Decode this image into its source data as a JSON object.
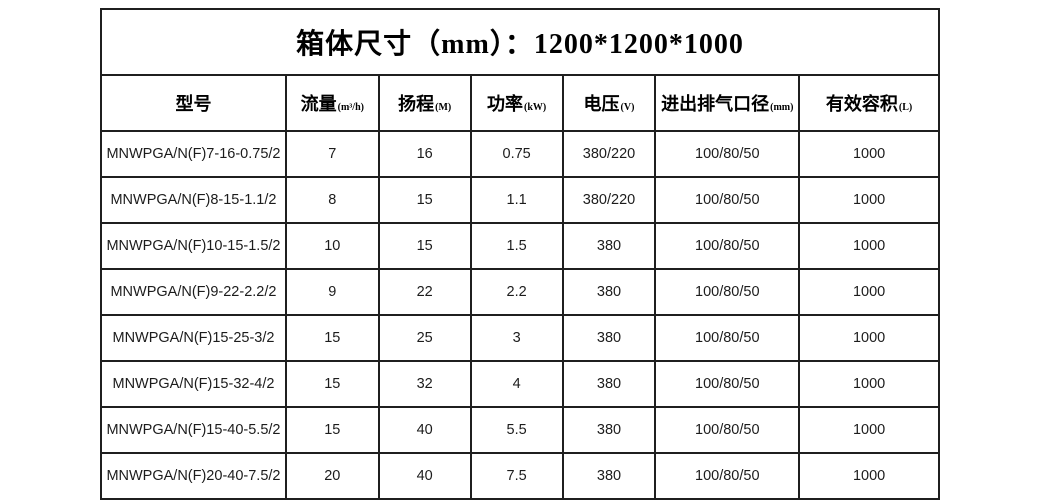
{
  "title": "箱体尺寸（mm）：1200*1200*1000",
  "chart_data": {
    "type": "table",
    "title": "箱体尺寸（mm）：1200*1200*1000",
    "columns": [
      {
        "label": "型号",
        "unit": ""
      },
      {
        "label": "流量",
        "unit": "(m³/h)"
      },
      {
        "label": "扬程",
        "unit": "(M)"
      },
      {
        "label": "功率",
        "unit": "(kW)"
      },
      {
        "label": "电压",
        "unit": "(V)"
      },
      {
        "label": "进出排气口径",
        "unit": "(mm)"
      },
      {
        "label": "有效容积",
        "unit": "(L)"
      }
    ],
    "rows": [
      [
        "MNWPGA/N(F)7-16-0.75/2",
        "7",
        "16",
        "0.75",
        "380/220",
        "100/80/50",
        "1000"
      ],
      [
        "MNWPGA/N(F)8-15-1.1/2",
        "8",
        "15",
        "1.1",
        "380/220",
        "100/80/50",
        "1000"
      ],
      [
        "MNWPGA/N(F)10-15-1.5/2",
        "10",
        "15",
        "1.5",
        "380",
        "100/80/50",
        "1000"
      ],
      [
        "MNWPGA/N(F)9-22-2.2/2",
        "9",
        "22",
        "2.2",
        "380",
        "100/80/50",
        "1000"
      ],
      [
        "MNWPGA/N(F)15-25-3/2",
        "15",
        "25",
        "3",
        "380",
        "100/80/50",
        "1000"
      ],
      [
        "MNWPGA/N(F)15-32-4/2",
        "15",
        "32",
        "4",
        "380",
        "100/80/50",
        "1000"
      ],
      [
        "MNWPGA/N(F)15-40-5.5/2",
        "15",
        "40",
        "5.5",
        "380",
        "100/80/50",
        "1000"
      ],
      [
        "MNWPGA/N(F)20-40-7.5/2",
        "20",
        "40",
        "7.5",
        "380",
        "100/80/50",
        "1000"
      ]
    ]
  },
  "colors": {
    "border": "#1f1f1f",
    "text": "#1c1c1c",
    "background": "#ffffff"
  }
}
